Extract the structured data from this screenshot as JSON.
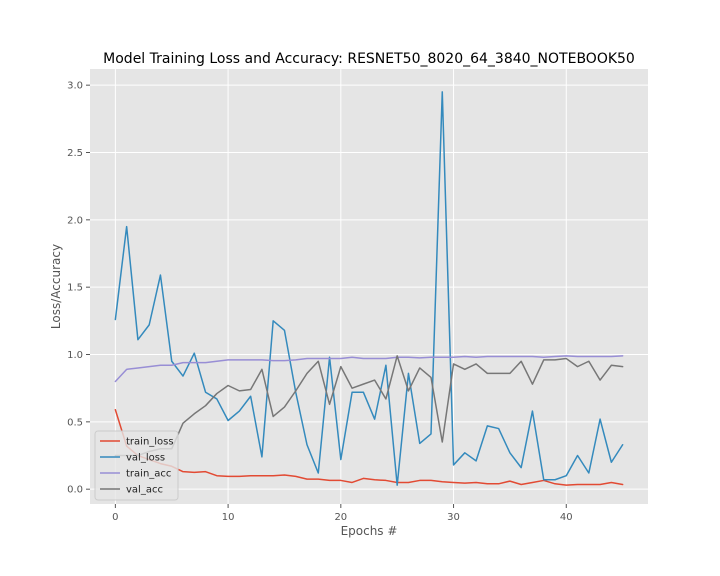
{
  "chart_data": {
    "type": "line",
    "title": "Model Training Loss and Accuracy: RESNET50_8020_64_3840_NOTEBOOK50",
    "xlabel": "Epochs #",
    "ylabel": "Loss/Accuracy",
    "xlim": [
      -2.25,
      47.25
    ],
    "ylim": [
      -0.11,
      3.12
    ],
    "xticks": [
      0,
      10,
      20,
      30,
      40
    ],
    "yticks": [
      0.0,
      0.5,
      1.0,
      1.5,
      2.0,
      2.5,
      3.0
    ],
    "xtick_labels": [
      "0",
      "10",
      "20",
      "30",
      "40"
    ],
    "ytick_labels": [
      "0.0",
      "0.5",
      "1.0",
      "1.5",
      "2.0",
      "2.5",
      "3.0"
    ],
    "grid": true,
    "legend_position": "lower-left",
    "x": [
      0,
      1,
      2,
      3,
      4,
      5,
      6,
      7,
      8,
      9,
      10,
      11,
      12,
      13,
      14,
      15,
      16,
      17,
      18,
      19,
      20,
      21,
      22,
      23,
      24,
      25,
      26,
      27,
      28,
      29,
      30,
      31,
      32,
      33,
      34,
      35,
      36,
      37,
      38,
      39,
      40,
      41,
      42,
      43,
      44,
      45
    ],
    "series": [
      {
        "name": "train_loss",
        "color": "#e24a33",
        "values": [
          0.59,
          0.32,
          0.25,
          0.22,
          0.19,
          0.17,
          0.13,
          0.125,
          0.13,
          0.1,
          0.095,
          0.095,
          0.1,
          0.1,
          0.1,
          0.105,
          0.095,
          0.075,
          0.075,
          0.065,
          0.065,
          0.05,
          0.08,
          0.07,
          0.065,
          0.05,
          0.05,
          0.065,
          0.065,
          0.055,
          0.05,
          0.045,
          0.05,
          0.04,
          0.04,
          0.06,
          0.035,
          0.05,
          0.065,
          0.04,
          0.03,
          0.035,
          0.035,
          0.035,
          0.05,
          0.035
        ]
      },
      {
        "name": "val_loss",
        "color": "#348abd",
        "values": [
          1.26,
          1.95,
          1.11,
          1.22,
          1.59,
          0.95,
          0.84,
          1.01,
          0.72,
          0.67,
          0.51,
          0.58,
          0.69,
          0.24,
          1.25,
          1.18,
          0.72,
          0.33,
          0.12,
          0.98,
          0.22,
          0.72,
          0.72,
          0.52,
          0.92,
          0.03,
          0.86,
          0.34,
          0.41,
          2.95,
          0.18,
          0.27,
          0.21,
          0.47,
          0.45,
          0.27,
          0.16,
          0.58,
          0.07,
          0.07,
          0.1,
          0.25,
          0.12,
          0.52,
          0.2,
          0.33
        ]
      },
      {
        "name": "train_acc",
        "color": "#988ed5",
        "values": [
          0.8,
          0.89,
          0.9,
          0.91,
          0.92,
          0.92,
          0.94,
          0.94,
          0.94,
          0.95,
          0.96,
          0.96,
          0.96,
          0.96,
          0.955,
          0.955,
          0.96,
          0.97,
          0.97,
          0.97,
          0.97,
          0.98,
          0.97,
          0.97,
          0.97,
          0.98,
          0.98,
          0.975,
          0.98,
          0.98,
          0.98,
          0.985,
          0.98,
          0.985,
          0.985,
          0.985,
          0.985,
          0.985,
          0.98,
          0.985,
          0.99,
          0.985,
          0.985,
          0.985,
          0.985,
          0.99
        ]
      },
      {
        "name": "val_acc",
        "color": "#777777",
        "values": [
          0.25,
          0.25,
          0.25,
          0.28,
          0.3,
          0.3,
          0.49,
          0.56,
          0.62,
          0.71,
          0.77,
          0.73,
          0.74,
          0.89,
          0.54,
          0.61,
          0.73,
          0.86,
          0.95,
          0.63,
          0.91,
          0.75,
          0.78,
          0.81,
          0.67,
          0.99,
          0.73,
          0.9,
          0.83,
          0.35,
          0.93,
          0.89,
          0.93,
          0.86,
          0.86,
          0.86,
          0.95,
          0.78,
          0.96,
          0.96,
          0.97,
          0.91,
          0.95,
          0.81,
          0.92,
          0.91
        ]
      }
    ],
    "colors": {
      "plot_background": "#e5e5e5",
      "grid": "#ffffff",
      "tick": "#555555",
      "legend_frame": "#cccccc"
    }
  }
}
